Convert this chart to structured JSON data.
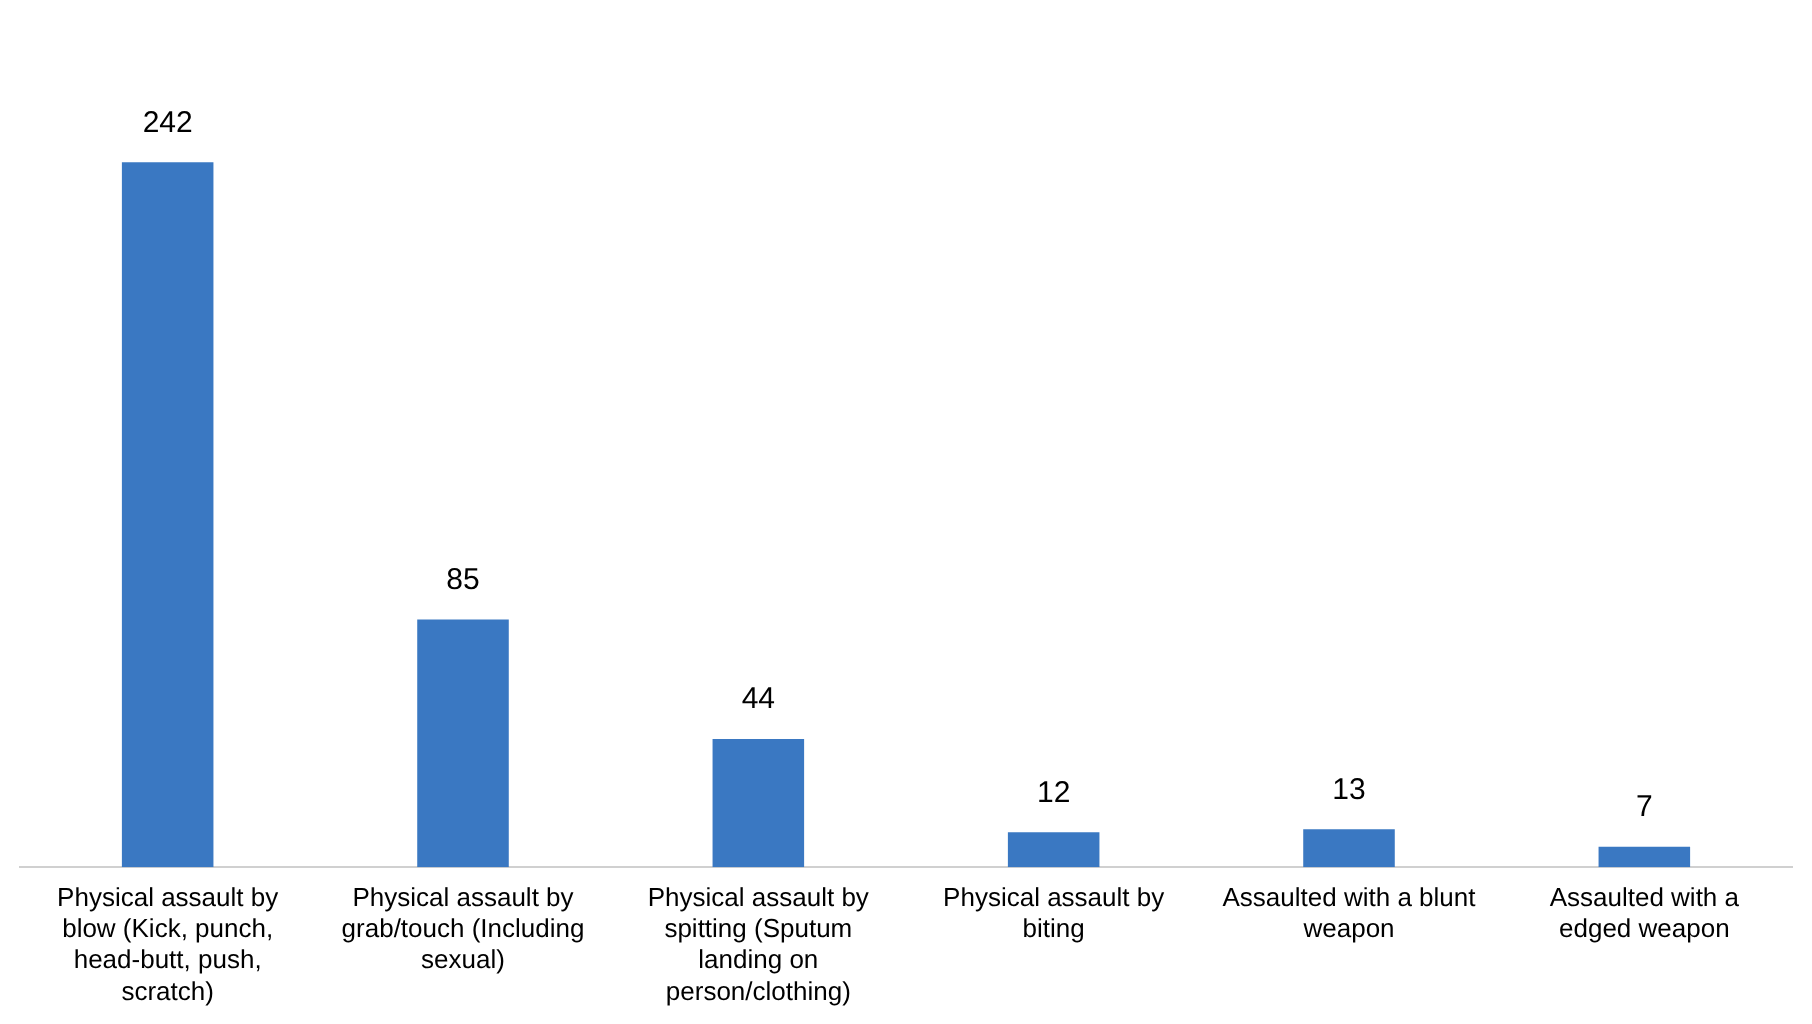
{
  "chart_data": {
    "type": "bar",
    "categories": [
      "Physical assault by blow (Kick, punch, head-butt, push, scratch)",
      "Physical assault by grab/touch (Including sexual)",
      "Physical assault by spitting (Sputum landing on person/clothing)",
      "Physical assault by biting",
      "Assaulted with a blunt weapon",
      "Assaulted with a edged weapon"
    ],
    "values": [
      242,
      85,
      44,
      12,
      13,
      7
    ],
    "color": "#3a78c2",
    "data_labels": true,
    "grid": false,
    "legend": false
  }
}
